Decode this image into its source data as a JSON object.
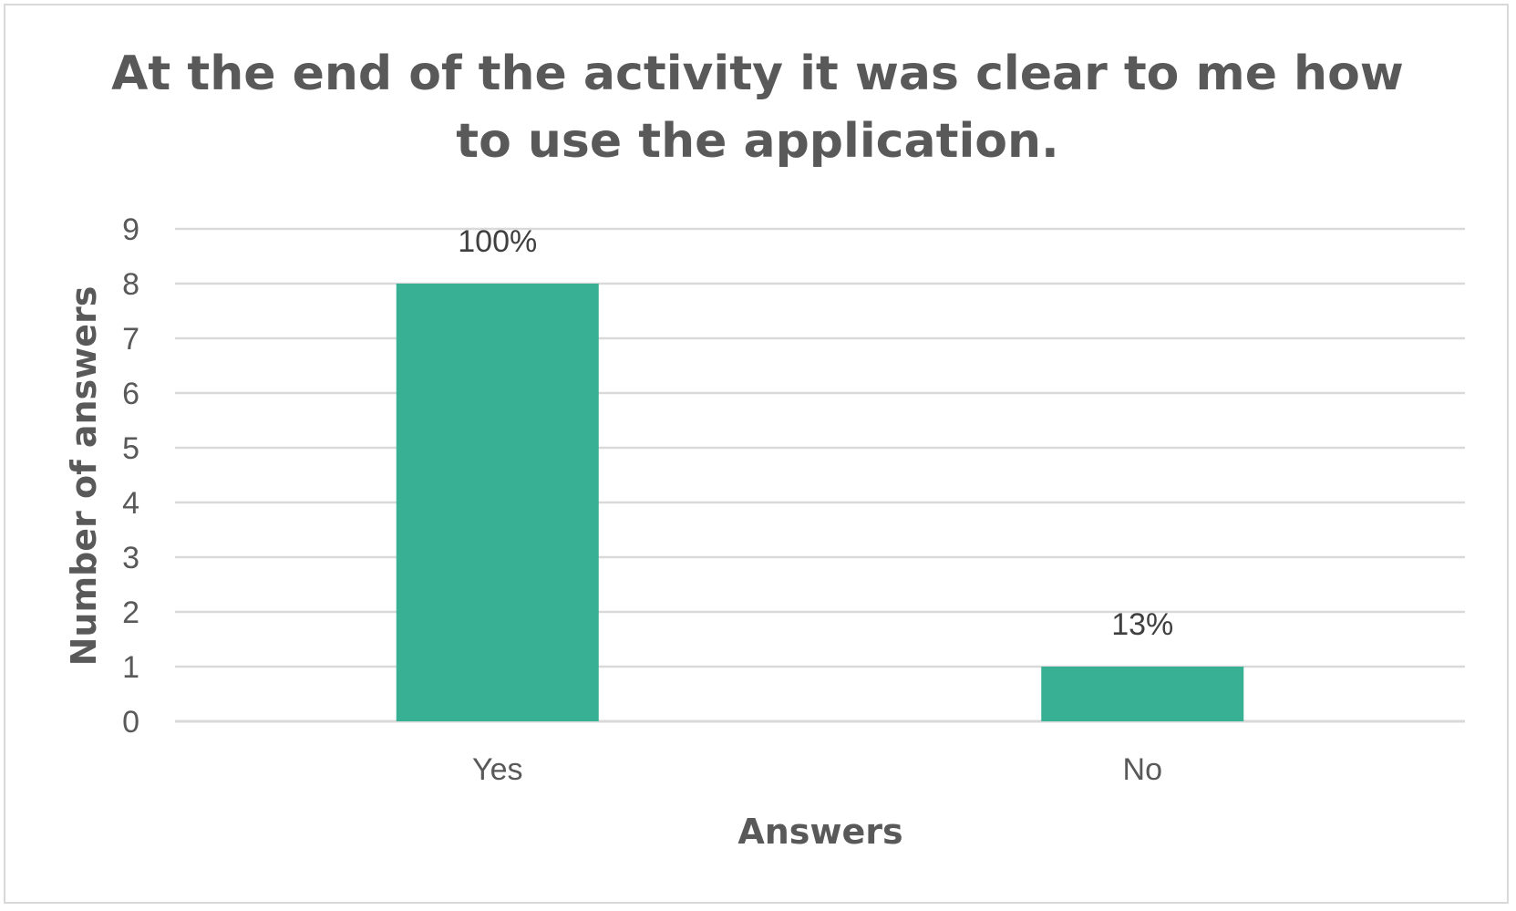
{
  "chart_data": {
    "type": "bar",
    "title_lines": [
      "At the end of the activity it was clear to me how",
      "to use the application."
    ],
    "xlabel": "Answers",
    "ylabel": "Number of answers",
    "categories": [
      "Yes",
      "No"
    ],
    "values": [
      8,
      1
    ],
    "data_labels": [
      "100%",
      "13%"
    ],
    "ylim": [
      0,
      9
    ],
    "yticks": [
      "0",
      "1",
      "2",
      "3",
      "4",
      "5",
      "6",
      "7",
      "8",
      "9"
    ],
    "grid": true,
    "legend": "none",
    "bar_color": "#37b094",
    "grid_color": "#d9d9d9"
  }
}
